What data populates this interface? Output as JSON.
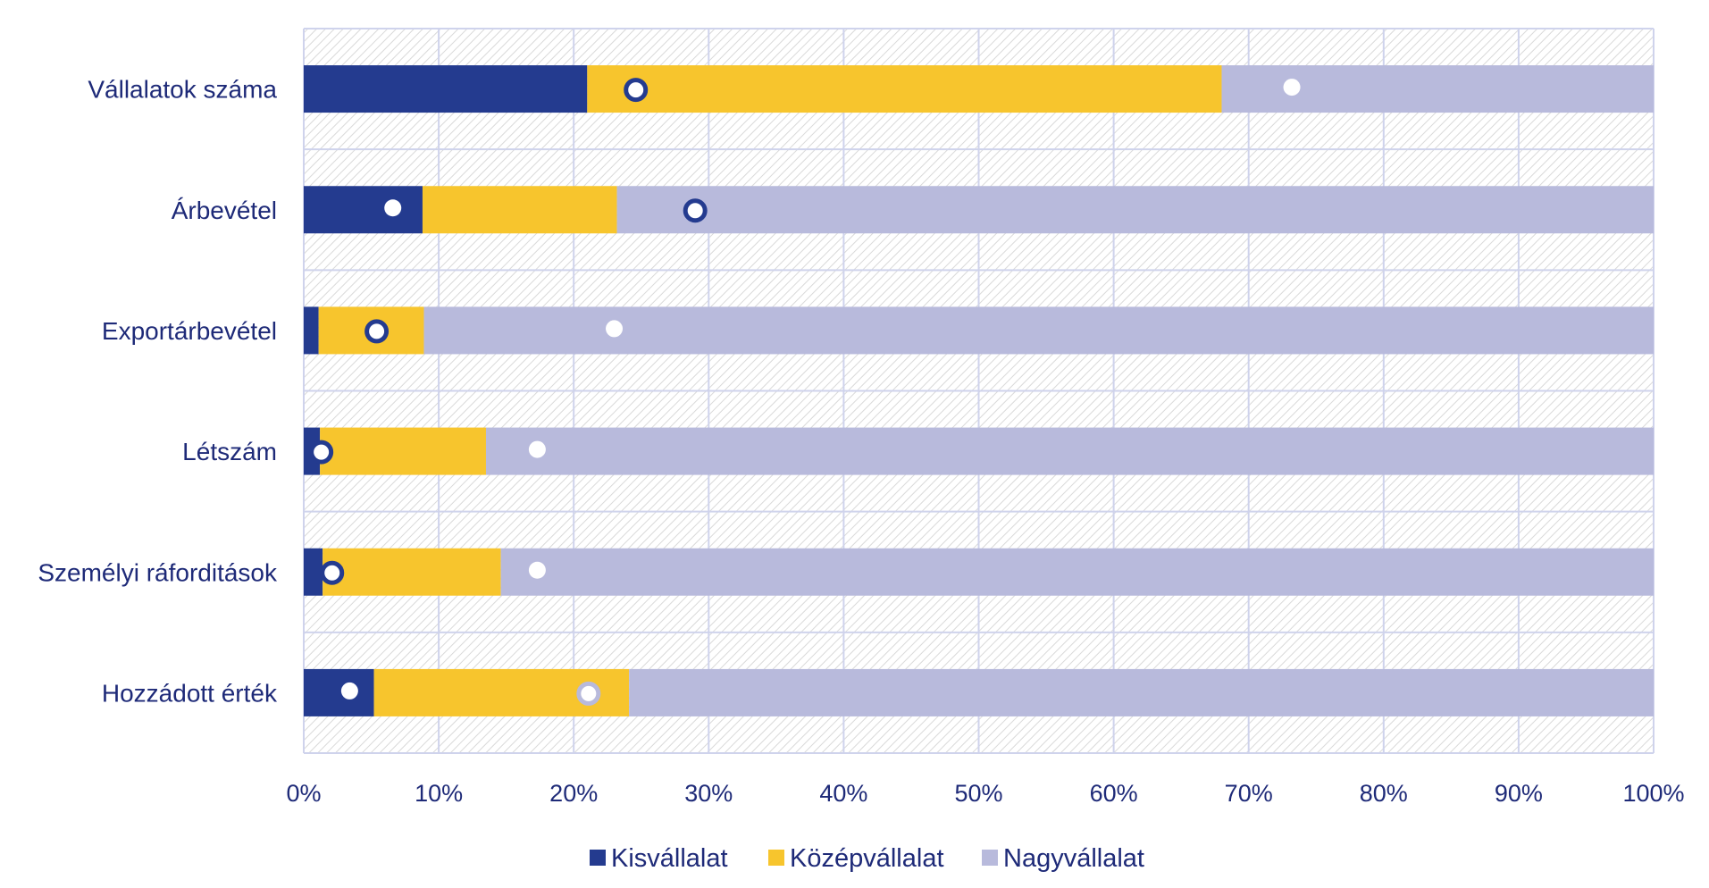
{
  "chart_data": {
    "type": "bar",
    "orientation": "horizontal",
    "stacked": "percent",
    "title": "",
    "xlabel": "",
    "ylabel": "",
    "xlim": [
      0,
      100
    ],
    "grid": true,
    "legend_position": "bottom",
    "categories": [
      "Vállalatok száma",
      "Árbevétel",
      "Exportárbevétel",
      "Létszám",
      "Személyi ráforditások",
      "Hozzádott érték"
    ],
    "series": [
      {
        "name": "Kisvállalat",
        "color": "#243b8f",
        "values": [
          21,
          8.8,
          1.1,
          1.2,
          1.4,
          5.2
        ]
      },
      {
        "name": "Középvállalat",
        "color": "#f7c52d",
        "values": [
          47,
          14.4,
          7.8,
          12.3,
          13.2,
          18.9
        ]
      },
      {
        "name": "Nagyvállalat",
        "color": "#b8badc",
        "values": [
          32,
          76.8,
          91.1,
          86.5,
          85.4,
          75.9
        ]
      }
    ],
    "markers": [
      {
        "name": "filled-dot-marker",
        "values": [
          73.2,
          6.6,
          23.0,
          17.3,
          17.3,
          3.4
        ]
      },
      {
        "name": "ring-marker",
        "values": [
          24.6,
          29.0,
          5.4,
          1.3,
          2.1,
          21.1
        ]
      }
    ],
    "x_ticks": [
      "0%",
      "10%",
      "20%",
      "30%",
      "40%",
      "50%",
      "60%",
      "70%",
      "80%",
      "90%",
      "100%"
    ],
    "colors": {
      "grid": "#cfd3ec",
      "hatch": "#d6d6d6",
      "text": "#1e2a78",
      "ring_outline_dark": "#243b8f",
      "ring_outline_light": "#b8badc"
    }
  }
}
